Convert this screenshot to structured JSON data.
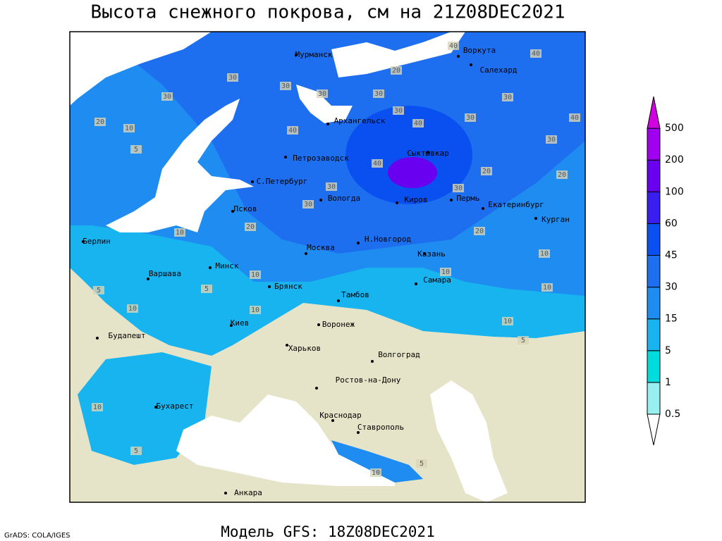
{
  "title": "Высота снежного покрова, см на 21Z08DEC2021",
  "footer": "Модель GFS: 18Z08DEC2021",
  "credit": "GrADS: COLA/IGES",
  "cities": [
    "Мурманск",
    "Воркута",
    "Салехард",
    "Архангельск",
    "Петрозаводск",
    "Сыктывкар",
    "С.Петербург",
    "Вологда",
    "Киров",
    "Пермь",
    "Екатеринбург",
    "Курган",
    "Псков",
    "Берлин",
    "Н.Новгород",
    "Москва",
    "Казань",
    "Минск",
    "Варшава",
    "Самара",
    "Брянск",
    "Тамбов",
    "Киев",
    "Воронеж",
    "Будапешт",
    "Харьков",
    "Волгоград",
    "Ростов-на-Дону",
    "Бухарест",
    "Краснодар",
    "Ставрополь",
    "Анкара"
  ],
  "contour_labels": [
    40,
    40,
    20,
    30,
    30,
    30,
    30,
    30,
    30,
    40,
    30,
    30,
    40,
    20,
    10,
    40,
    30,
    5,
    40,
    30,
    20,
    20,
    30,
    30,
    20,
    10,
    20,
    5,
    10,
    10,
    10,
    10,
    10,
    10,
    10,
    5,
    5,
    10,
    5,
    10,
    5
  ],
  "legend": {
    "levels": [
      0.5,
      1,
      5,
      15,
      30,
      45,
      60,
      100,
      200,
      500
    ],
    "colors": [
      "#ffffff",
      "#96f0f0",
      "#00dcdc",
      "#18b4f0",
      "#1e8cf0",
      "#1e6ef0",
      "#0a50f0",
      "#3a1ef0",
      "#6a00f0",
      "#a000f0",
      "#d000e0"
    ]
  }
}
